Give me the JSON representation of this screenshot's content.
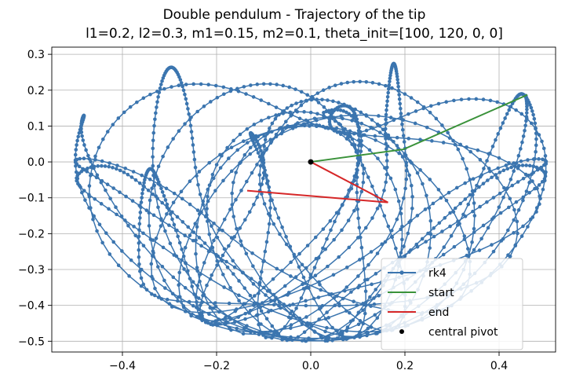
{
  "chart_data": {
    "type": "line",
    "title": "Double pendulum - Trajectory of the tip",
    "subtitle": "l1=0.2, l2=0.3, m1=0.15, m2=0.1, theta_init=[100, 120, 0, 0]",
    "xlim": [
      -0.55,
      0.52
    ],
    "ylim": [
      -0.53,
      0.32
    ],
    "x_ticks": [
      -0.4,
      -0.2,
      0.0,
      0.2,
      0.4
    ],
    "x_tick_labels": [
      "−0.4",
      "−0.2",
      "0.0",
      "0.2",
      "0.4"
    ],
    "y_ticks": [
      0.3,
      0.2,
      0.1,
      0.0,
      -0.1,
      -0.2,
      -0.3,
      -0.4,
      -0.5
    ],
    "y_tick_labels": [
      "0.3",
      "0.2",
      "0.1",
      "0.0",
      "−0.1",
      "−0.2",
      "−0.3",
      "−0.4",
      "−0.5"
    ],
    "grid": true,
    "legend_position": "bottom-right",
    "colors": {
      "rk4": "#3b75af",
      "start": "#3a923a",
      "end": "#d62728",
      "pivot": "#000000"
    },
    "series": [
      {
        "name": "rk4",
        "kind": "trajectory",
        "parameters": {
          "l1": 0.2,
          "l2": 0.3,
          "m1": 0.15,
          "m2": 0.1,
          "theta_init": [
            100,
            120,
            0,
            0
          ]
        }
      },
      {
        "name": "start",
        "x": [
          0.0,
          0.197,
          0.46
        ],
        "y": [
          0.0,
          0.035,
          0.187
        ]
      },
      {
        "name": "end",
        "x": [
          0.0,
          0.164,
          -0.135
        ],
        "y": [
          0.0,
          -0.113,
          -0.08
        ]
      },
      {
        "name": "central pivot",
        "x": [
          0.0
        ],
        "y": [
          0.0
        ]
      }
    ]
  }
}
